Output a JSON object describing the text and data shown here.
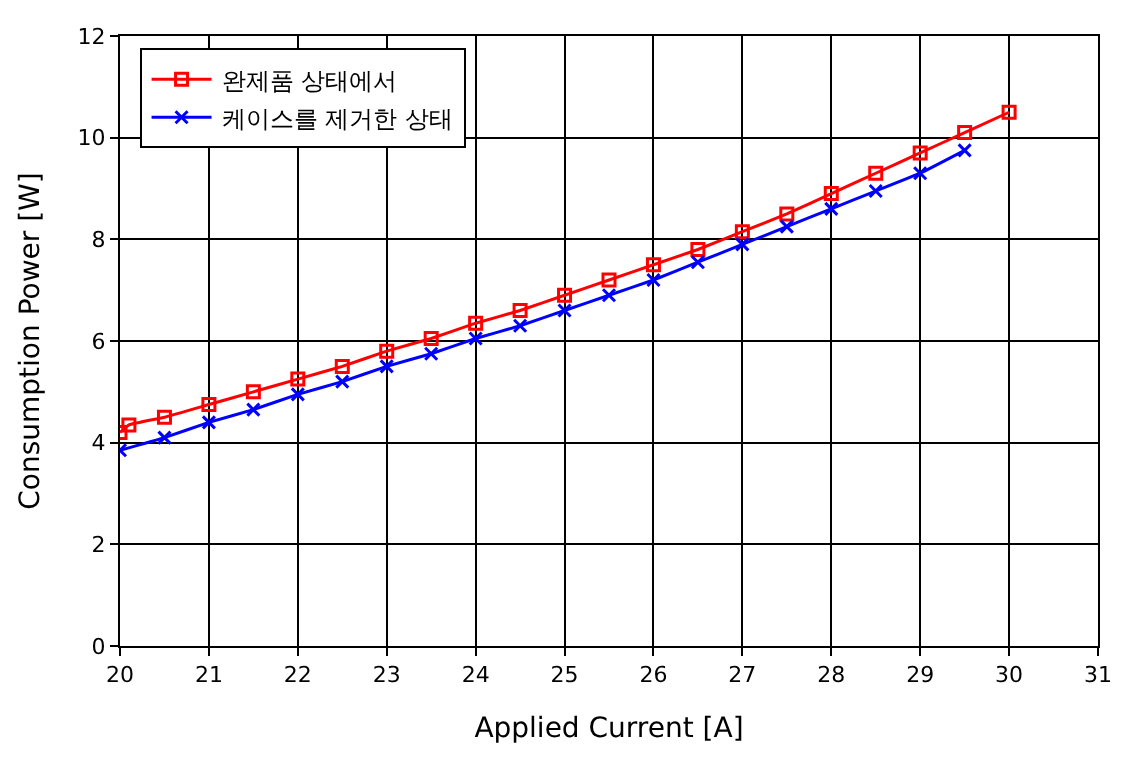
{
  "chart_data": {
    "type": "line",
    "xlabel": "Applied Current [A]",
    "ylabel": "Consumption Power [W]",
    "xlim": [
      20,
      31
    ],
    "xticks": [
      20,
      21,
      22,
      23,
      24,
      25,
      26,
      27,
      28,
      29,
      30,
      31
    ],
    "ylim": [
      0,
      12
    ],
    "yticks": [
      0,
      2,
      4,
      6,
      8,
      10,
      12
    ],
    "grid": true,
    "legend": "top left",
    "series": [
      {
        "name": "완제품 상태에서",
        "color": "#ff0000",
        "marker": "square",
        "x": [
          20,
          20.1,
          20.5,
          21,
          21.5,
          22,
          22.5,
          23,
          23.5,
          24,
          24.5,
          25,
          25.5,
          26,
          26.5,
          27,
          27.5,
          28,
          28.5,
          29,
          29.5,
          30
        ],
        "values": [
          4.2,
          4.35,
          4.5,
          4.75,
          5.0,
          5.25,
          5.5,
          5.8,
          6.05,
          6.35,
          6.6,
          6.9,
          7.2,
          7.5,
          7.8,
          8.15,
          8.5,
          8.9,
          9.3,
          9.7,
          10.1,
          10.5
        ]
      },
      {
        "name": "케이스를 제거한 상태",
        "color": "#0000ff",
        "marker": "cross",
        "x": [
          20,
          20.5,
          21,
          21.5,
          22,
          22.5,
          23,
          23.5,
          24,
          24.5,
          25,
          25.5,
          26,
          26.5,
          27,
          27.5,
          28,
          28.5,
          29,
          29.5
        ],
        "values": [
          3.85,
          4.1,
          4.4,
          4.65,
          4.95,
          5.2,
          5.5,
          5.75,
          6.05,
          6.3,
          6.6,
          6.9,
          7.2,
          7.55,
          7.9,
          8.25,
          8.6,
          8.95,
          9.3,
          9.75
        ]
      }
    ]
  }
}
